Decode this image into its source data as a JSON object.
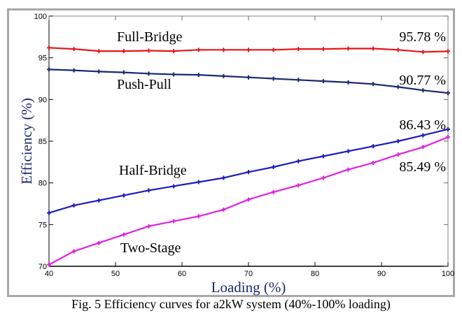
{
  "chart_data": {
    "type": "line",
    "title": "",
    "xlabel": "Loading (%)",
    "ylabel": "Efficiency  (%)",
    "xlim": [
      40,
      100
    ],
    "ylim": [
      70,
      100
    ],
    "xticks": [
      40,
      50,
      60,
      70,
      80,
      90,
      100
    ],
    "yticks": [
      70,
      75,
      80,
      85,
      90,
      95,
      100
    ],
    "grid": false,
    "x": [
      40,
      43.75,
      47.5,
      51.25,
      55,
      58.75,
      62.5,
      66.25,
      70,
      73.75,
      77.5,
      81.25,
      85,
      88.75,
      92.5,
      96.25,
      100
    ],
    "series": [
      {
        "name": "Full-Bridge",
        "color": "#e8141a",
        "end_label": "95.78 %",
        "values": [
          96.2,
          96.05,
          95.8,
          95.8,
          95.85,
          95.8,
          95.95,
          95.95,
          95.95,
          95.95,
          96.05,
          96.05,
          96.1,
          96.1,
          95.95,
          95.7,
          95.78
        ]
      },
      {
        "name": "Push-Pull",
        "color": "#1a2a6e",
        "end_label": "90.77 %",
        "values": [
          93.6,
          93.5,
          93.35,
          93.25,
          93.1,
          93.0,
          92.95,
          92.8,
          92.65,
          92.5,
          92.35,
          92.2,
          92.05,
          91.85,
          91.5,
          91.1,
          90.77
        ]
      },
      {
        "name": "Half-Bridge",
        "color": "#1c1cc0",
        "end_label": "86.43 %",
        "values": [
          76.4,
          77.3,
          77.9,
          78.5,
          79.1,
          79.6,
          80.1,
          80.6,
          81.3,
          81.9,
          82.6,
          83.2,
          83.8,
          84.4,
          85.0,
          85.7,
          86.43
        ]
      },
      {
        "name": "Two-Stage",
        "color": "#e020e0",
        "end_label": "85.49 %",
        "values": [
          70.2,
          71.8,
          72.8,
          73.8,
          74.8,
          75.4,
          76.0,
          76.8,
          78.0,
          78.9,
          79.7,
          80.6,
          81.6,
          82.4,
          83.4,
          84.3,
          85.49
        ]
      }
    ]
  },
  "caption": "Fig. 5 Efficiency curves for a2kW system (40%-100% loading)"
}
